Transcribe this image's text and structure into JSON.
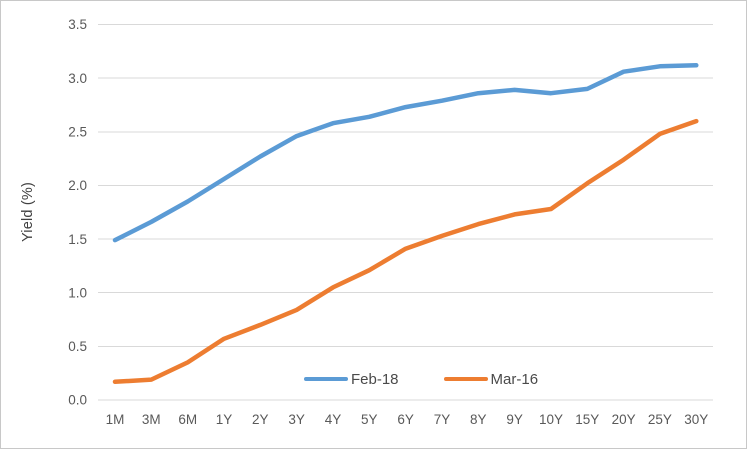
{
  "chart_data": {
    "type": "line",
    "title": "",
    "xlabel": "",
    "ylabel": "Yield (%)",
    "ylim": [
      0,
      3.5
    ],
    "yticks": [
      0.0,
      0.5,
      1.0,
      1.5,
      2.0,
      2.5,
      3.0,
      3.5
    ],
    "ytick_decimals": 1,
    "categories": [
      "1M",
      "3M",
      "6M",
      "1Y",
      "2Y",
      "3Y",
      "4Y",
      "5Y",
      "6Y",
      "7Y",
      "8Y",
      "9Y",
      "10Y",
      "15Y",
      "20Y",
      "25Y",
      "30Y"
    ],
    "series": [
      {
        "name": "Feb-18",
        "color": "#5B9BD5",
        "values": [
          1.49,
          1.66,
          1.85,
          2.06,
          2.27,
          2.46,
          2.58,
          2.64,
          2.73,
          2.79,
          2.86,
          2.89,
          2.86,
          2.9,
          3.06,
          3.11,
          3.12
        ]
      },
      {
        "name": "Mar-16",
        "color": "#ED7D31",
        "values": [
          0.17,
          0.19,
          0.35,
          0.57,
          0.7,
          0.84,
          1.05,
          1.21,
          1.41,
          1.53,
          1.64,
          1.73,
          1.78,
          2.02,
          2.24,
          2.48,
          2.6
        ]
      }
    ],
    "grid": "horizontal",
    "gridline_color": "#D9D9D9",
    "axis_text_color": "#595959",
    "legend_position": "bottom-center-inside"
  }
}
